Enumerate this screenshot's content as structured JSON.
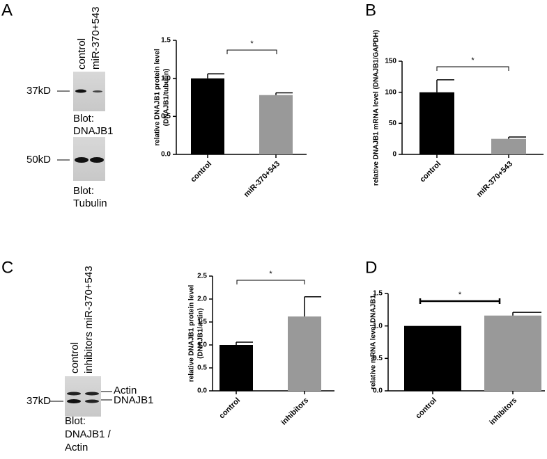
{
  "panel_labels": [
    "A",
    "B",
    "C",
    "D"
  ],
  "blots": [
    {
      "lanes": [
        "control",
        "miR-370+543"
      ],
      "marker": "37kD",
      "caption": [
        "Blot:",
        "DNAJB1"
      ]
    },
    {
      "marker": "50kD",
      "caption": [
        "Blot:",
        "Tubulin"
      ]
    },
    {
      "lanes": [
        "control",
        "inhibitors miR-370+543"
      ],
      "marker": "37kD",
      "band_labels": [
        "Actin",
        "DNAJB1"
      ],
      "caption": [
        "Blot:",
        "DNAJB1 /",
        "Actin"
      ]
    }
  ],
  "chart_data": [
    {
      "type": "bar",
      "y_label": [
        "relative DNAJB1 protein level",
        "(DNAJB1/tubulin)"
      ],
      "categories": [
        "control",
        "miR-370+543"
      ],
      "values": [
        1.0,
        0.78
      ],
      "errors": [
        0.06,
        0.03
      ],
      "colors": [
        "#000000",
        "#999999"
      ],
      "ylim": [
        0,
        1.5
      ],
      "yticks": [
        {
          "value": 0,
          "label": "0.0"
        },
        {
          "value": 0.5,
          "label": "0.5"
        },
        {
          "value": 1,
          "label": "1.0"
        },
        {
          "value": 1.5,
          "label": "1.5"
        }
      ],
      "annotation": "*"
    },
    {
      "type": "bar",
      "y_label": [
        "relative DNAJB1 mRNA level (DNAJB1/GAPDH)"
      ],
      "categories": [
        "control",
        "miR-370+543"
      ],
      "values": [
        100,
        25
      ],
      "errors": [
        20,
        3
      ],
      "colors": [
        "#000000",
        "#999999"
      ],
      "ylim": [
        0,
        150
      ],
      "yticks": [
        0,
        50,
        100,
        150
      ],
      "annotation": "*"
    },
    {
      "type": "bar",
      "y_label": [
        "relative DNAJB1 protein level",
        "(DNAJB1/actin)"
      ],
      "categories": [
        "control",
        "inhibitors"
      ],
      "values": [
        1.0,
        1.62
      ],
      "errors": [
        0.06,
        0.43
      ],
      "colors": [
        "#000000",
        "#999999"
      ],
      "ylim": [
        0,
        2.5
      ],
      "yticks": [
        {
          "value": 0,
          "label": "0.0"
        },
        {
          "value": 0.5,
          "label": "0.5"
        },
        {
          "value": 1,
          "label": "1.0"
        },
        {
          "value": 1.5,
          "label": "1.5"
        },
        {
          "value": 2,
          "label": "2.0"
        },
        {
          "value": 2.5,
          "label": "2.5"
        }
      ],
      "annotation": "*"
    },
    {
      "type": "bar",
      "y_label": [
        "relative mRNA level DNAJB1"
      ],
      "categories": [
        "control",
        "inhibitors"
      ],
      "values": [
        1.0,
        1.16
      ],
      "errors": [
        0,
        0.05
      ],
      "colors": [
        "#000000",
        "#999999"
      ],
      "ylim": [
        0,
        1.5
      ],
      "yticks": [
        {
          "value": 0,
          "label": "0.0"
        },
        {
          "value": 0.5,
          "label": "0.5"
        },
        {
          "value": 1,
          "label": "1.0"
        },
        {
          "value": 1.5,
          "label": "1.5"
        }
      ],
      "annotation": "*"
    }
  ]
}
